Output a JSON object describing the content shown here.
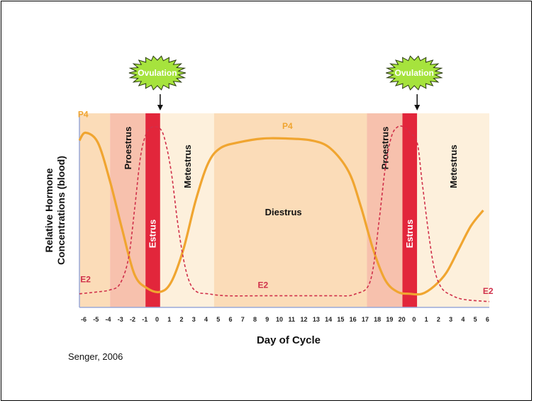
{
  "source": "Senger, 2006",
  "chart_data": {
    "type": "line",
    "xlabel": "Day of Cycle",
    "ylabel_lines": [
      "Relative Hormone",
      "Concentrations (blood)"
    ],
    "x_ticks": [
      "-6",
      "-5",
      "-4",
      "-3",
      "-2",
      "-1",
      "0",
      "1",
      "2",
      "3",
      "4",
      "5",
      "6",
      "7",
      "8",
      "9",
      "10",
      "11",
      "12",
      "13",
      "14",
      "15",
      "16",
      "17",
      "18",
      "19",
      "20",
      "0",
      "1",
      "2",
      "3",
      "4",
      "5",
      "6"
    ],
    "phases": [
      {
        "label": "",
        "from": 0,
        "to": 2.5,
        "color": "#fbdcb8"
      },
      {
        "label": "Proestrus",
        "from": 2.5,
        "to": 5.4,
        "color": "#f7c1ad",
        "vertical": true
      },
      {
        "label": "Estrus",
        "from": 5.4,
        "to": 6.6,
        "color": "#e2263b",
        "vertical": true
      },
      {
        "label": "Metestrus",
        "from": 6.6,
        "to": 11,
        "color": "#fdf0dc",
        "vertical": true
      },
      {
        "label": "Diestrus",
        "from": 11,
        "to": 23.5,
        "color": "#fbdcb8",
        "vertical": false
      },
      {
        "label": "Proestrus",
        "from": 23.5,
        "to": 26.4,
        "color": "#f7c1ad",
        "vertical": true
      },
      {
        "label": "Estrus",
        "from": 26.4,
        "to": 27.6,
        "color": "#e2263b",
        "vertical": true
      },
      {
        "label": "Metestrus",
        "from": 27.6,
        "to": 33.5,
        "color": "#fdf0dc",
        "vertical": true
      }
    ],
    "ovulation_markers": [
      {
        "label": "Ovulation",
        "x": 6.6
      },
      {
        "label": "Ovulation",
        "x": 27.6
      }
    ],
    "series": [
      {
        "name": "P4",
        "style": "solid",
        "color": "#f0a530",
        "x": [
          0,
          0.5,
          1.5,
          2.5,
          3.5,
          4.5,
          5.5,
          6.6,
          7.5,
          8.5,
          9.5,
          10.5,
          11.5,
          13,
          15,
          17,
          19,
          20.5,
          22,
          23,
          24,
          25,
          26,
          27,
          28,
          29,
          30,
          31,
          32,
          33
        ],
        "y": [
          0.86,
          0.9,
          0.85,
          0.65,
          0.4,
          0.17,
          0.1,
          0.08,
          0.13,
          0.3,
          0.55,
          0.74,
          0.82,
          0.85,
          0.87,
          0.87,
          0.86,
          0.82,
          0.7,
          0.52,
          0.3,
          0.14,
          0.08,
          0.07,
          0.07,
          0.11,
          0.18,
          0.3,
          0.42,
          0.5
        ]
      },
      {
        "name": "E2",
        "style": "dashed",
        "color": "#d0304a",
        "x": [
          0,
          1.5,
          2.5,
          3.3,
          4,
          4.5,
          5,
          5.5,
          6,
          6.6,
          7,
          7.5,
          8,
          8.5,
          9,
          9.6,
          10.5,
          12,
          15,
          18,
          21,
          22,
          22.6,
          23.5,
          24,
          24.5,
          25,
          25.5,
          26,
          26.5,
          27,
          27.6,
          28,
          28.5,
          29,
          29.6,
          30.5,
          31.5,
          33.5
        ],
        "y": [
          0.07,
          0.08,
          0.09,
          0.12,
          0.25,
          0.5,
          0.78,
          0.9,
          0.93,
          0.92,
          0.86,
          0.7,
          0.45,
          0.25,
          0.13,
          0.08,
          0.07,
          0.06,
          0.06,
          0.06,
          0.06,
          0.06,
          0.07,
          0.1,
          0.2,
          0.45,
          0.72,
          0.88,
          0.93,
          0.93,
          0.9,
          0.85,
          0.65,
          0.4,
          0.2,
          0.1,
          0.06,
          0.04,
          0.03
        ]
      }
    ],
    "series_labels": [
      {
        "text": "P4",
        "series": "P4",
        "x": 0.3,
        "y": 0.98
      },
      {
        "text": "P4",
        "series": "P4",
        "x": 17.0,
        "y": 0.92
      },
      {
        "text": "E2",
        "series": "E2",
        "x": 0.5,
        "y": 0.13
      },
      {
        "text": "E2",
        "series": "E2",
        "x": 15.0,
        "y": 0.1
      },
      {
        "text": "E2",
        "series": "E2",
        "x": 33.4,
        "y": 0.07
      }
    ]
  }
}
